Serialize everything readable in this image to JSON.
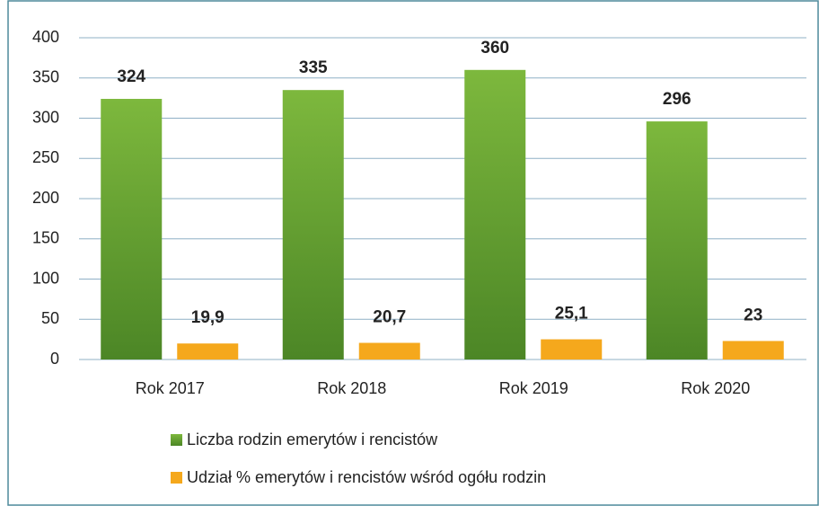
{
  "chart_data": {
    "type": "bar",
    "categories": [
      "Rok 2017",
      "Rok 2018",
      "Rok 2019",
      "Rok 2020"
    ],
    "series": [
      {
        "name": "Liczba rodzin emerytów i rencistów",
        "color": "#6aa533",
        "values": [
          324,
          335,
          360,
          296
        ]
      },
      {
        "name": "Udział % emerytów i rencistów wśród ogółu rodzin",
        "color": "#f5a81c",
        "values": [
          19.9,
          20.7,
          25.1,
          23
        ],
        "value_labels": [
          "19,9",
          "20,7",
          "25,1",
          "23"
        ]
      }
    ],
    "ylim": [
      0,
      400
    ],
    "yticks": [
      0,
      50,
      100,
      150,
      200,
      250,
      300,
      350,
      400
    ],
    "grid": true,
    "legend": "bottom"
  }
}
